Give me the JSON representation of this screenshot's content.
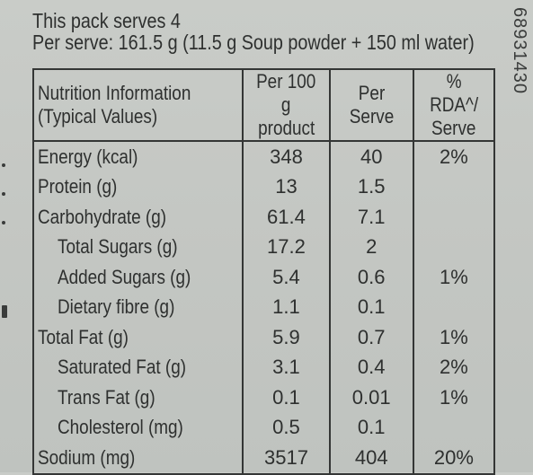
{
  "header": {
    "serves": "This pack serves 4",
    "per_serve": "Per serve: 161.5 g (11.5 g Soup powder + 150 ml water)"
  },
  "side_code": "68931430",
  "table": {
    "headers": {
      "col1_line1": "Nutrition Information",
      "col1_line2": "(Typical Values)",
      "col2_line1": "Per 100 g",
      "col2_line2": "product",
      "col3": "Per Serve",
      "col4_line1": "% RDA^/",
      "col4_line2": "Serve"
    },
    "rows": [
      {
        "name": "Energy (kcal)",
        "per100": "348",
        "serve": "40",
        "rda": "2%"
      },
      {
        "name": "Protein (g)",
        "per100": "13",
        "serve": "1.5",
        "rda": ""
      },
      {
        "name": "Carbohydrate (g)",
        "per100": "61.4",
        "serve": "7.1",
        "rda": ""
      },
      {
        "name": "Total Sugars (g)",
        "per100": "17.2",
        "serve": "2",
        "rda": ""
      },
      {
        "name": "Added Sugars (g)",
        "per100": "5.4",
        "serve": "0.6",
        "rda": "1%"
      },
      {
        "name": "Dietary fibre (g)",
        "per100": "1.1",
        "serve": "0.1",
        "rda": ""
      },
      {
        "name": "Total Fat (g)",
        "per100": "5.9",
        "serve": "0.7",
        "rda": "1%"
      },
      {
        "name": "Saturated Fat (g)",
        "per100": "3.1",
        "serve": "0.4",
        "rda": "2%"
      },
      {
        "name": "Trans Fat (g)",
        "per100": "0.1",
        "serve": "0.01",
        "rda": "1%"
      },
      {
        "name": "Cholesterol (mg)",
        "per100": "0.5",
        "serve": "0.1",
        "rda": ""
      },
      {
        "name": "Sodium (mg)",
        "per100": "3517",
        "serve": "404",
        "rda": "20%"
      }
    ]
  }
}
